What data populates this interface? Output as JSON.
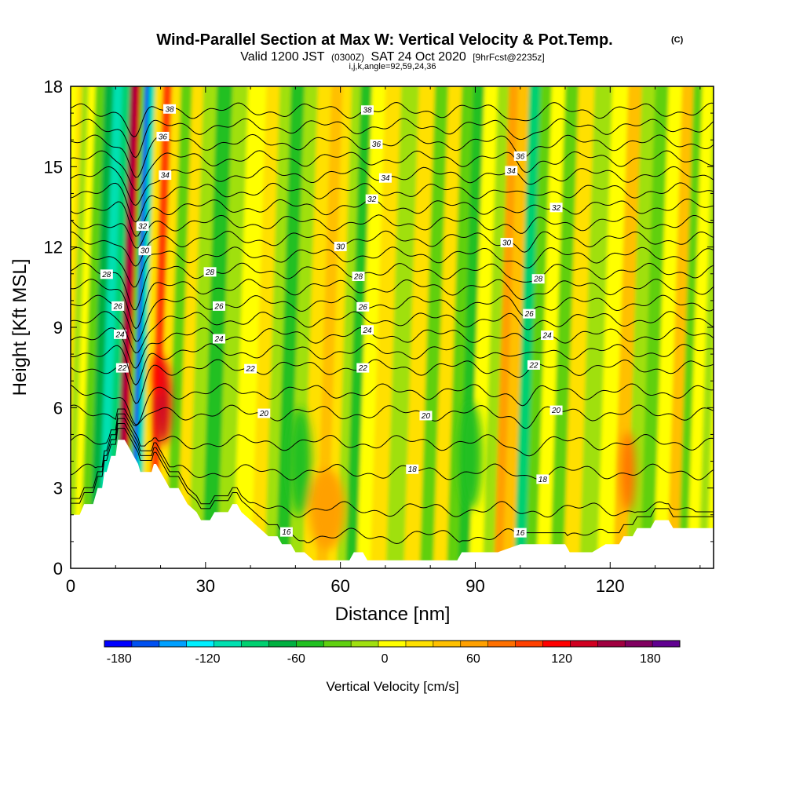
{
  "chart_data": {
    "type": "heatmap",
    "title": "Wind-Parallel Section at Max W: Vertical Velocity & Pot.Temp.",
    "title_mark": "(C)",
    "subtitle_parts": [
      "Valid 1200 JST",
      "(0300Z)",
      "SAT 24 Oct 2020",
      "[9hrFcst@2235z]"
    ],
    "grid_info": "i,j,k,angle=92,59,24,36",
    "xlabel": "Distance [nm]",
    "ylabel": "Height [Kft MSL]",
    "xlim": [
      0,
      143
    ],
    "ylim": [
      0,
      18
    ],
    "xticks": [
      {
        "value": 0,
        "label": "0"
      },
      {
        "value": 30,
        "label": "30"
      },
      {
        "value": 60,
        "label": "60"
      },
      {
        "value": 90,
        "label": "90"
      },
      {
        "value": 120,
        "label": "120"
      }
    ],
    "yticks": [
      {
        "value": 0,
        "label": "0"
      },
      {
        "value": 3,
        "label": "3"
      },
      {
        "value": 6,
        "label": "6"
      },
      {
        "value": 9,
        "label": "9"
      },
      {
        "value": 12,
        "label": "12"
      },
      {
        "value": 15,
        "label": "15"
      },
      {
        "value": 18,
        "label": "18"
      }
    ],
    "colorbar": {
      "label": "Vertical Velocity [cm/s]",
      "min": -190,
      "max": 200,
      "colors": [
        "#0000ff",
        "#0050f0",
        "#00a0ff",
        "#00f0ff",
        "#00e0b0",
        "#00d070",
        "#00b040",
        "#20c020",
        "#60d010",
        "#a0e010",
        "#ffff00",
        "#ffe000",
        "#ffc000",
        "#ffa000",
        "#ff7000",
        "#ff4000",
        "#ff0000",
        "#d00020",
        "#a00040",
        "#800060",
        "#600090"
      ],
      "ticks": [
        {
          "value": -180,
          "label": "-180"
        },
        {
          "value": -120,
          "label": "-120"
        },
        {
          "value": -60,
          "label": "-60"
        },
        {
          "value": 0,
          "label": "0"
        },
        {
          "value": 60,
          "label": "60"
        },
        {
          "value": 120,
          "label": "120"
        },
        {
          "value": 180,
          "label": "180"
        }
      ]
    },
    "bands": [
      {
        "x": 0,
        "w": 20
      },
      {
        "x": 2,
        "w": -15
      },
      {
        "x": 3,
        "w": 10
      },
      {
        "x": 5,
        "w": -40
      },
      {
        "x": 7,
        "w": -70
      },
      {
        "x": 9,
        "w": -110
      },
      {
        "x": 11,
        "w": -90
      },
      {
        "x": 12.5,
        "w": 150
      },
      {
        "x": 13.5,
        "w": 130
      },
      {
        "x": 14.5,
        "w": -40
      },
      {
        "x": 15.5,
        "w": -170
      },
      {
        "x": 16.5,
        "w": -100
      },
      {
        "x": 18,
        "w": 30
      },
      {
        "x": 20,
        "w": 100
      },
      {
        "x": 22,
        "w": 20
      },
      {
        "x": 24,
        "w": -30
      },
      {
        "x": 27,
        "w": 15
      },
      {
        "x": 29,
        "w": -20
      },
      {
        "x": 33,
        "w": -55
      },
      {
        "x": 36,
        "w": -20
      },
      {
        "x": 40,
        "w": 10
      },
      {
        "x": 44,
        "w": 30
      },
      {
        "x": 46,
        "w": -10
      },
      {
        "x": 49,
        "w": -45
      },
      {
        "x": 52,
        "w": -15
      },
      {
        "x": 55,
        "w": 20
      },
      {
        "x": 58,
        "w": 45
      },
      {
        "x": 60,
        "w": 15
      },
      {
        "x": 62,
        "w": -10
      },
      {
        "x": 64,
        "w": -45
      },
      {
        "x": 67,
        "w": 10
      },
      {
        "x": 70,
        "w": 25
      },
      {
        "x": 74,
        "w": -15
      },
      {
        "x": 78,
        "w": 15
      },
      {
        "x": 81,
        "w": -25
      },
      {
        "x": 84,
        "w": 20
      },
      {
        "x": 87,
        "w": -40
      },
      {
        "x": 89,
        "w": -55
      },
      {
        "x": 92,
        "w": 10
      },
      {
        "x": 95,
        "w": -10
      },
      {
        "x": 97,
        "w": 55
      },
      {
        "x": 99,
        "w": 40
      },
      {
        "x": 102,
        "w": -80
      },
      {
        "x": 104,
        "w": -40
      },
      {
        "x": 107,
        "w": 10
      },
      {
        "x": 110,
        "w": -25
      },
      {
        "x": 113,
        "w": 15
      },
      {
        "x": 117,
        "w": -15
      },
      {
        "x": 121,
        "w": 10
      },
      {
        "x": 124,
        "w": 45
      },
      {
        "x": 127,
        "w": -10
      },
      {
        "x": 130,
        "w": -30
      },
      {
        "x": 133,
        "w": 10
      },
      {
        "x": 136,
        "w": 40
      },
      {
        "x": 138,
        "w": -30
      },
      {
        "x": 140,
        "w": 10
      },
      {
        "x": 143,
        "w": -10
      }
    ],
    "blobs": [
      {
        "x": 20.5,
        "y": 6.2,
        "rx": 1.8,
        "ry": 1.6,
        "w": 140
      },
      {
        "x": 19.5,
        "y": 7.2,
        "rx": 1.2,
        "ry": 0.8,
        "w": 110
      },
      {
        "x": 57,
        "y": 2.2,
        "rx": 4,
        "ry": 1.5,
        "w": 55
      },
      {
        "x": 51,
        "y": 4.0,
        "rx": 2.5,
        "ry": 2.0,
        "w": -50
      },
      {
        "x": 89,
        "y": 4.2,
        "rx": 2.5,
        "ry": 2.0,
        "w": -60
      },
      {
        "x": 124,
        "y": 3.6,
        "rx": 1.5,
        "ry": 1.5,
        "w": 70
      }
    ],
    "terrain_kft": [
      [
        0,
        2.0
      ],
      [
        2,
        2.0
      ],
      [
        3,
        2.4
      ],
      [
        5,
        2.4
      ],
      [
        5.5,
        2.7
      ],
      [
        6,
        3.0
      ],
      [
        7,
        3.0
      ],
      [
        7.5,
        3.6
      ],
      [
        8,
        3.6
      ],
      [
        8.5,
        3.9
      ],
      [
        9,
        4.2
      ],
      [
        10,
        4.2
      ],
      [
        10.5,
        4.8
      ],
      [
        12,
        4.8
      ],
      [
        13,
        4.5
      ],
      [
        14,
        4.2
      ],
      [
        15,
        3.9
      ],
      [
        15.5,
        3.6
      ],
      [
        18,
        3.6
      ],
      [
        18.5,
        3.9
      ],
      [
        19,
        3.9
      ],
      [
        20,
        3.6
      ],
      [
        21,
        3.3
      ],
      [
        22,
        3.0
      ],
      [
        24,
        3.0
      ],
      [
        25,
        2.7
      ],
      [
        26,
        2.4
      ],
      [
        28,
        2.1
      ],
      [
        29,
        1.8
      ],
      [
        31,
        1.8
      ],
      [
        32,
        2.1
      ],
      [
        35,
        2.1
      ],
      [
        36,
        2.4
      ],
      [
        37,
        2.4
      ],
      [
        38,
        2.1
      ],
      [
        40,
        1.8
      ],
      [
        42,
        1.5
      ],
      [
        44,
        1.2
      ],
      [
        46,
        1.2
      ],
      [
        47,
        0.9
      ],
      [
        49,
        0.9
      ],
      [
        50,
        0.6
      ],
      [
        52,
        0.6
      ],
      [
        54,
        0.3
      ],
      [
        62,
        0.3
      ],
      [
        63,
        0.6
      ],
      [
        65,
        0.6
      ],
      [
        66,
        0.3
      ],
      [
        86,
        0.3
      ],
      [
        87,
        0.6
      ],
      [
        95,
        0.6
      ],
      [
        100,
        0.9
      ],
      [
        105,
        0.9
      ],
      [
        110,
        0.9
      ],
      [
        111,
        0.6
      ],
      [
        116,
        0.6
      ],
      [
        119,
        0.9
      ],
      [
        122,
        0.9
      ],
      [
        123,
        1.2
      ],
      [
        125,
        1.2
      ],
      [
        126,
        1.5
      ],
      [
        129,
        1.5
      ],
      [
        130,
        1.8
      ],
      [
        133,
        1.8
      ],
      [
        134,
        1.5
      ],
      [
        143,
        1.5
      ]
    ],
    "isentropes": [
      {
        "theta": 16,
        "base": 1.2,
        "dip": 1.4,
        "label_x": [
          48,
          100
        ]
      },
      {
        "theta": 17,
        "base": 2.2,
        "dip": 1.3,
        "label_x": []
      },
      {
        "theta": 18,
        "base": 3.6,
        "dip": 1.2,
        "label_x": [
          76,
          105
        ]
      },
      {
        "theta": 19,
        "base": 4.7,
        "dip": 1.1,
        "label_x": []
      },
      {
        "theta": 20,
        "base": 5.8,
        "dip": 1.0,
        "label_x": [
          43,
          79,
          108
        ]
      },
      {
        "theta": 21,
        "base": 6.6,
        "dip": 0.9,
        "label_x": []
      },
      {
        "theta": 22,
        "base": 7.5,
        "dip": 0.9,
        "label_x": [
          11.5,
          40,
          65,
          103
        ]
      },
      {
        "theta": 23,
        "base": 8.1,
        "dip": 0.8,
        "label_x": []
      },
      {
        "theta": 24,
        "base": 8.7,
        "dip": 0.8,
        "label_x": [
          11,
          33,
          66,
          106
        ]
      },
      {
        "theta": 25,
        "base": 9.3,
        "dip": 0.8,
        "label_x": []
      },
      {
        "theta": 26,
        "base": 9.9,
        "dip": 0.8,
        "label_x": [
          10.5,
          33,
          65,
          102
        ]
      },
      {
        "theta": 27,
        "base": 10.5,
        "dip": 0.8,
        "label_x": []
      },
      {
        "theta": 28,
        "base": 11.1,
        "dip": 0.8,
        "label_x": [
          8,
          31,
          64,
          104
        ]
      },
      {
        "theta": 29,
        "base": 11.7,
        "dip": 0.8,
        "label_x": []
      },
      {
        "theta": 30,
        "base": 12.3,
        "dip": 0.8,
        "label_x": [
          16.5,
          60,
          97
        ]
      },
      {
        "theta": 31,
        "base": 12.9,
        "dip": 0.7,
        "label_x": []
      },
      {
        "theta": 32,
        "base": 13.5,
        "dip": 0.7,
        "label_x": [
          16,
          67,
          108
        ]
      },
      {
        "theta": 33,
        "base": 14.1,
        "dip": 0.7,
        "label_x": []
      },
      {
        "theta": 34,
        "base": 14.7,
        "dip": 0.7,
        "label_x": [
          21,
          70,
          98
        ]
      },
      {
        "theta": 35,
        "base": 15.3,
        "dip": 0.7,
        "label_x": []
      },
      {
        "theta": 36,
        "base": 15.9,
        "dip": 0.7,
        "label_x": [
          20.5,
          68,
          100
        ]
      },
      {
        "theta": 37,
        "base": 16.5,
        "dip": 0.6,
        "label_x": []
      },
      {
        "theta": 38,
        "base": 17.1,
        "dip": 0.6,
        "label_x": [
          22,
          66
        ]
      }
    ]
  }
}
